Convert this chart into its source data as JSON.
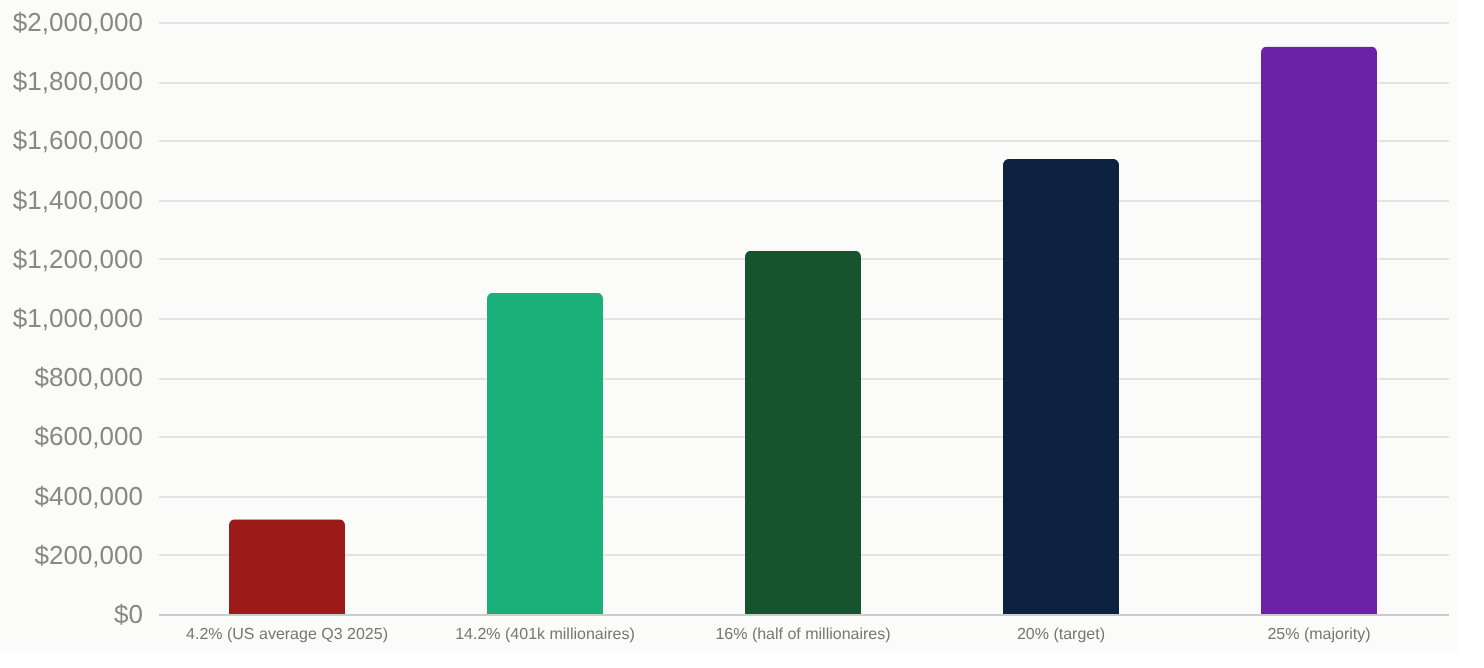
{
  "chart_data": {
    "type": "bar",
    "categories": [
      "4.2% (US average Q3 2025)",
      "14.2% (401k millionaires)",
      "16% (half of millionaires)",
      "20% (target)",
      "25% (majority)"
    ],
    "values": [
      320000,
      1085000,
      1227000,
      1537000,
      1917000
    ],
    "colors": [
      "#9b1b1b",
      "#1bb07a",
      "#16532f",
      "#0d2240",
      "#6b21a8"
    ],
    "ylim": [
      0,
      2000000
    ],
    "yticks": [
      {
        "value": 0,
        "label": "$0"
      },
      {
        "value": 200000,
        "label": "$200,000"
      },
      {
        "value": 400000,
        "label": "$400,000"
      },
      {
        "value": 600000,
        "label": "$600,000"
      },
      {
        "value": 800000,
        "label": "$800,000"
      },
      {
        "value": 1000000,
        "label": "$1,000,000"
      },
      {
        "value": 1200000,
        "label": "$1,200,000"
      },
      {
        "value": 1400000,
        "label": "$1,400,000"
      },
      {
        "value": 1600000,
        "label": "$1,600,000"
      },
      {
        "value": 1800000,
        "label": "$1,800,000"
      },
      {
        "value": 2000000,
        "label": "$2,000,000"
      }
    ],
    "grid": "y",
    "legend": false
  }
}
